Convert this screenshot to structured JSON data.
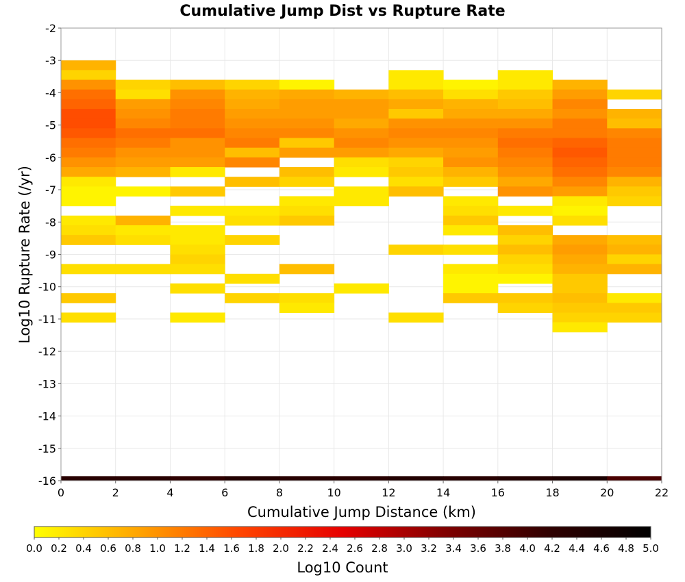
{
  "chart_data": {
    "type": "heatmap",
    "title": "Cumulative Jump Dist vs Rupture Rate",
    "xlabel": "Cumulative Jump Distance (km)",
    "ylabel": "Log10 Rupture Rate (/yr)",
    "xlim": [
      0,
      22
    ],
    "ylim": [
      -16,
      -2
    ],
    "x_ticks": [
      0,
      2,
      4,
      6,
      8,
      10,
      12,
      14,
      16,
      18,
      20,
      22
    ],
    "y_ticks": [
      -2,
      -3,
      -4,
      -5,
      -6,
      -7,
      -8,
      -9,
      -10,
      -11,
      -12,
      -13,
      -14,
      -15,
      -16
    ],
    "x_bin_width": 2,
    "y_bin_height": 0.3,
    "grid": true,
    "colorbar": {
      "label": "Log10 Count",
      "range": [
        0,
        5
      ],
      "ticks": [
        "0.0",
        "0.2",
        "0.4",
        "0.6",
        "0.8",
        "1.0",
        "1.2",
        "1.4",
        "1.6",
        "1.8",
        "2.0",
        "2.2",
        "2.4",
        "2.6",
        "2.8",
        "3.0",
        "3.2",
        "3.4",
        "3.6",
        "3.8",
        "4.0",
        "4.2",
        "4.4",
        "4.6",
        "4.8",
        "5.0"
      ],
      "colors": [
        "#ffff00",
        "#ffa500",
        "#ff4500",
        "#e60000",
        "#800000",
        "#300000",
        "#000000"
      ],
      "placement": "bottom"
    },
    "columns": [
      {
        "x": [
          0,
          2
        ],
        "cells": [
          [
            -3.3,
            0.7
          ],
          [
            -3.6,
            0.4
          ],
          [
            -3.9,
            1.0
          ],
          [
            -4.2,
            1.3
          ],
          [
            -4.5,
            1.4
          ],
          [
            -4.8,
            1.6
          ],
          [
            -5.1,
            1.6
          ],
          [
            -5.4,
            1.5
          ],
          [
            -5.7,
            1.3
          ],
          [
            -6.0,
            1.2
          ],
          [
            -6.3,
            1.0
          ],
          [
            -6.6,
            0.8
          ],
          [
            -6.9,
            0.2
          ],
          [
            -7.2,
            0.1
          ],
          [
            -7.5,
            0.1
          ],
          [
            -8.1,
            0.2
          ],
          [
            -8.4,
            0.3
          ],
          [
            -8.7,
            0.5
          ],
          [
            -9.6,
            0.3
          ],
          [
            -10.5,
            0.5
          ],
          [
            -11.1,
            0.3
          ]
        ]
      },
      {
        "x": [
          2,
          4
        ],
        "cells": [
          [
            -3.9,
            0.4
          ],
          [
            -4.2,
            0.3
          ],
          [
            -4.5,
            0.9
          ],
          [
            -4.8,
            1.0
          ],
          [
            -5.1,
            1.1
          ],
          [
            -5.4,
            1.3
          ],
          [
            -5.7,
            1.2
          ],
          [
            -6.0,
            1.0
          ],
          [
            -6.3,
            0.9
          ],
          [
            -6.6,
            0.7
          ],
          [
            -7.2,
            0.1
          ],
          [
            -8.1,
            0.7
          ],
          [
            -8.4,
            0.2
          ],
          [
            -8.7,
            0.3
          ],
          [
            -9.6,
            0.3
          ]
        ]
      },
      {
        "x": [
          4,
          6
        ],
        "cells": [
          [
            -3.9,
            0.6
          ],
          [
            -4.2,
            1.0
          ],
          [
            -4.5,
            1.1
          ],
          [
            -4.8,
            1.2
          ],
          [
            -5.1,
            1.2
          ],
          [
            -5.4,
            1.3
          ],
          [
            -5.7,
            1.0
          ],
          [
            -6.0,
            1.0
          ],
          [
            -6.3,
            0.9
          ],
          [
            -6.6,
            0.2
          ],
          [
            -7.2,
            0.5
          ],
          [
            -7.8,
            0.2
          ],
          [
            -8.4,
            0.2
          ],
          [
            -8.7,
            0.2
          ],
          [
            -9.0,
            0.3
          ],
          [
            -9.3,
            0.4
          ],
          [
            -9.6,
            0.3
          ],
          [
            -10.2,
            0.3
          ],
          [
            -11.1,
            0.2
          ]
        ]
      },
      {
        "x": [
          6,
          8
        ],
        "cells": [
          [
            -3.9,
            0.4
          ],
          [
            -4.2,
            0.7
          ],
          [
            -4.5,
            0.8
          ],
          [
            -4.8,
            0.9
          ],
          [
            -5.1,
            1.0
          ],
          [
            -5.4,
            1.1
          ],
          [
            -5.7,
            1.2
          ],
          [
            -6.0,
            0.6
          ],
          [
            -6.3,
            1.1
          ],
          [
            -6.9,
            0.6
          ],
          [
            -7.8,
            0.2
          ],
          [
            -8.1,
            0.3
          ],
          [
            -8.7,
            0.4
          ],
          [
            -9.9,
            0.3
          ],
          [
            -10.5,
            0.4
          ]
        ]
      },
      {
        "x": [
          8,
          10
        ],
        "cells": [
          [
            -3.9,
            0.1
          ],
          [
            -4.2,
            0.8
          ],
          [
            -4.5,
            0.9
          ],
          [
            -4.8,
            0.9
          ],
          [
            -5.1,
            1.0
          ],
          [
            -5.4,
            1.1
          ],
          [
            -5.7,
            0.5
          ],
          [
            -6.0,
            0.9
          ],
          [
            -6.6,
            0.6
          ],
          [
            -6.9,
            0.4
          ],
          [
            -7.5,
            0.2
          ],
          [
            -7.8,
            0.3
          ],
          [
            -8.1,
            0.5
          ],
          [
            -9.6,
            0.6
          ],
          [
            -10.5,
            0.3
          ],
          [
            -10.8,
            0.2
          ]
        ]
      },
      {
        "x": [
          10,
          12
        ],
        "cells": [
          [
            -4.2,
            0.7
          ],
          [
            -4.5,
            0.9
          ],
          [
            -4.8,
            0.9
          ],
          [
            -5.1,
            0.8
          ],
          [
            -5.4,
            1.0
          ],
          [
            -5.7,
            1.1
          ],
          [
            -6.0,
            0.9
          ],
          [
            -6.3,
            0.3
          ],
          [
            -6.6,
            0.2
          ],
          [
            -7.2,
            0.2
          ],
          [
            -7.5,
            0.2
          ],
          [
            -10.2,
            0.2
          ]
        ]
      },
      {
        "x": [
          12,
          14
        ],
        "cells": [
          [
            -3.6,
            0.2
          ],
          [
            -3.9,
            0.2
          ],
          [
            -4.2,
            0.6
          ],
          [
            -4.5,
            0.8
          ],
          [
            -4.8,
            0.5
          ],
          [
            -5.1,
            1.0
          ],
          [
            -5.4,
            1.1
          ],
          [
            -5.7,
            1.0
          ],
          [
            -6.0,
            0.8
          ],
          [
            -6.3,
            0.4
          ],
          [
            -6.6,
            0.5
          ],
          [
            -6.9,
            0.3
          ],
          [
            -7.2,
            0.6
          ],
          [
            -9.0,
            0.4
          ],
          [
            -11.1,
            0.3
          ]
        ]
      },
      {
        "x": [
          14,
          16
        ],
        "cells": [
          [
            -3.9,
            0.1
          ],
          [
            -4.2,
            0.3
          ],
          [
            -4.5,
            0.7
          ],
          [
            -4.8,
            0.8
          ],
          [
            -5.1,
            1.0
          ],
          [
            -5.4,
            1.1
          ],
          [
            -5.7,
            1.0
          ],
          [
            -6.0,
            0.9
          ],
          [
            -6.3,
            1.0
          ],
          [
            -6.6,
            0.7
          ],
          [
            -6.9,
            0.5
          ],
          [
            -7.5,
            0.2
          ],
          [
            -7.8,
            0.3
          ],
          [
            -8.1,
            0.5
          ],
          [
            -8.4,
            0.2
          ],
          [
            -9.0,
            0.3
          ],
          [
            -9.6,
            0.2
          ],
          [
            -9.9,
            0.1
          ],
          [
            -10.2,
            0.1
          ],
          [
            -10.5,
            0.5
          ]
        ]
      },
      {
        "x": [
          16,
          18
        ],
        "cells": [
          [
            -3.6,
            0.2
          ],
          [
            -3.9,
            0.2
          ],
          [
            -4.2,
            0.5
          ],
          [
            -4.5,
            0.6
          ],
          [
            -4.8,
            0.8
          ],
          [
            -5.1,
            1.0
          ],
          [
            -5.4,
            1.2
          ],
          [
            -5.7,
            1.3
          ],
          [
            -6.0,
            1.2
          ],
          [
            -6.3,
            1.1
          ],
          [
            -6.6,
            1.0
          ],
          [
            -6.9,
            0.8
          ],
          [
            -7.2,
            1.0
          ],
          [
            -7.8,
            0.2
          ],
          [
            -8.4,
            0.6
          ],
          [
            -8.7,
            0.4
          ],
          [
            -9.0,
            0.6
          ],
          [
            -9.3,
            0.4
          ],
          [
            -9.6,
            0.3
          ],
          [
            -9.9,
            0.1
          ],
          [
            -10.5,
            0.5
          ],
          [
            -10.8,
            0.4
          ]
        ]
      },
      {
        "x": [
          18,
          20
        ],
        "cells": [
          [
            -3.9,
            0.7
          ],
          [
            -4.2,
            0.9
          ],
          [
            -4.5,
            1.1
          ],
          [
            -4.8,
            1.0
          ],
          [
            -5.1,
            1.2
          ],
          [
            -5.4,
            1.2
          ],
          [
            -5.7,
            1.4
          ],
          [
            -6.0,
            1.5
          ],
          [
            -6.3,
            1.4
          ],
          [
            -6.6,
            1.3
          ],
          [
            -6.9,
            1.1
          ],
          [
            -7.2,
            0.9
          ],
          [
            -7.5,
            0.2
          ],
          [
            -7.8,
            0.1
          ],
          [
            -8.1,
            0.3
          ],
          [
            -8.7,
            0.8
          ],
          [
            -9.0,
            0.9
          ],
          [
            -9.3,
            0.8
          ],
          [
            -9.6,
            0.7
          ],
          [
            -9.9,
            0.5
          ],
          [
            -10.2,
            0.5
          ],
          [
            -10.5,
            0.6
          ],
          [
            -10.8,
            0.5
          ],
          [
            -11.1,
            0.4
          ],
          [
            -11.4,
            0.2
          ]
        ]
      },
      {
        "x": [
          20,
          22
        ],
        "cells": [
          [
            -4.2,
            0.4
          ],
          [
            -4.8,
            0.7
          ],
          [
            -5.1,
            0.6
          ],
          [
            -5.4,
            1.1
          ],
          [
            -5.7,
            1.2
          ],
          [
            -6.0,
            1.2
          ],
          [
            -6.3,
            1.2
          ],
          [
            -6.6,
            1.1
          ],
          [
            -6.9,
            0.7
          ],
          [
            -7.2,
            0.5
          ],
          [
            -7.5,
            0.4
          ],
          [
            -8.7,
            0.6
          ],
          [
            -9.0,
            0.7
          ],
          [
            -9.3,
            0.4
          ],
          [
            -9.6,
            0.7
          ],
          [
            -10.5,
            0.2
          ],
          [
            -10.8,
            0.5
          ],
          [
            -11.1,
            0.4
          ]
        ]
      }
    ],
    "bottom_row": {
      "y": [
        -16,
        -15.86
      ],
      "segments": [
        {
          "x": [
            0,
            2
          ],
          "value": 4.3
        },
        {
          "x": [
            2,
            4
          ],
          "value": 4.3
        },
        {
          "x": [
            4,
            6
          ],
          "value": 4.2
        },
        {
          "x": [
            6,
            8
          ],
          "value": 4.4
        },
        {
          "x": [
            8,
            10
          ],
          "value": 4.3
        },
        {
          "x": [
            10,
            12
          ],
          "value": 4.3
        },
        {
          "x": [
            12,
            14
          ],
          "value": 4.4
        },
        {
          "x": [
            14,
            16
          ],
          "value": 4.3
        },
        {
          "x": [
            16,
            18
          ],
          "value": 4.4
        },
        {
          "x": [
            18,
            20
          ],
          "value": 4.5
        },
        {
          "x": [
            20,
            22
          ],
          "value": 3.9
        }
      ]
    }
  }
}
